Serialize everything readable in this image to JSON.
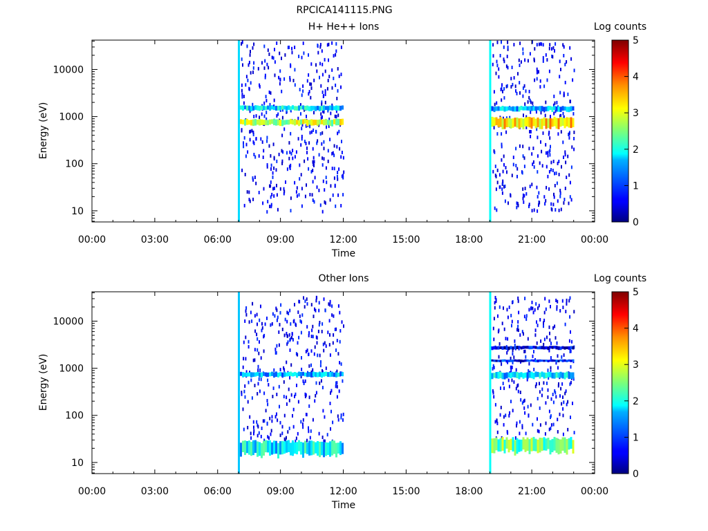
{
  "figure_title": "RPCICA141115.PNG",
  "chart_data": [
    {
      "type": "heatmap",
      "title": "H+ He++ Ions",
      "xlabel": "Time",
      "ylabel": "Energy (eV)",
      "xlim": [
        "00:00",
        "24:00"
      ],
      "x_ticks": [
        "00:00",
        "03:00",
        "06:00",
        "09:00",
        "12:00",
        "15:00",
        "18:00",
        "21:00",
        "00:00"
      ],
      "ylim": [
        5.8,
        42000
      ],
      "y_scale": "log",
      "y_ticks": [
        10,
        100,
        1000,
        10000
      ],
      "y_tick_labels": [
        "10",
        "100",
        "1000",
        "10000"
      ],
      "colorbar": {
        "label": "Log counts",
        "min": 0,
        "max": 5,
        "ticks": [
          "0",
          "1",
          "2",
          "3",
          "4",
          "5"
        ],
        "colormap": "jet"
      },
      "data_intervals": [
        {
          "start": "07:00",
          "end": "12:00"
        },
        {
          "start": "19:00",
          "end": "23:00"
        }
      ],
      "onset_spikes": [
        {
          "time": "07:00",
          "log_counts": 1.7,
          "e_min": 5.8,
          "e_max": 42000
        },
        {
          "time": "19:00",
          "log_counts": 1.9,
          "e_min": 5.8,
          "e_max": 42000
        }
      ],
      "bands": [
        {
          "start": "07:00",
          "end": "12:00",
          "e_low": 650,
          "e_high": 900,
          "log_counts": 2.8
        },
        {
          "start": "07:00",
          "end": "12:00",
          "e_low": 1350,
          "e_high": 1750,
          "log_counts": 1.7
        },
        {
          "start": "19:00",
          "end": "23:00",
          "e_low": 580,
          "e_high": 1000,
          "log_counts": 3.3
        },
        {
          "start": "19:00",
          "end": "23:00",
          "e_low": 1300,
          "e_high": 1700,
          "log_counts": 1.5
        }
      ],
      "sparse_counts_range": {
        "e_low": 10,
        "e_high": 42000,
        "log_counts": 0.3
      }
    },
    {
      "type": "heatmap",
      "title": "Other Ions",
      "xlabel": "Time",
      "ylabel": "Energy (eV)",
      "xlim": [
        "00:00",
        "24:00"
      ],
      "x_ticks": [
        "00:00",
        "03:00",
        "06:00",
        "09:00",
        "12:00",
        "15:00",
        "18:00",
        "21:00",
        "00:00"
      ],
      "ylim": [
        5.8,
        42000
      ],
      "y_scale": "log",
      "y_ticks": [
        10,
        100,
        1000,
        10000
      ],
      "y_tick_labels": [
        "10",
        "100",
        "1000",
        "10000"
      ],
      "colorbar": {
        "label": "Log counts",
        "min": 0,
        "max": 5,
        "ticks": [
          "0",
          "1",
          "2",
          "3",
          "4",
          "5"
        ],
        "colormap": "jet"
      },
      "data_intervals": [
        {
          "start": "07:00",
          "end": "12:00"
        },
        {
          "start": "19:00",
          "end": "23:00"
        }
      ],
      "onset_spikes": [
        {
          "time": "07:00",
          "log_counts": 1.6,
          "e_min": 5.8,
          "e_max": 42000
        },
        {
          "time": "19:00",
          "log_counts": 1.9,
          "e_min": 5.8,
          "e_max": 42000
        }
      ],
      "bands": [
        {
          "start": "07:00",
          "end": "12:00",
          "e_low": 650,
          "e_high": 850,
          "log_counts": 1.5
        },
        {
          "start": "07:00",
          "end": "12:00",
          "e_low": 14,
          "e_high": 30,
          "log_counts": 1.8
        },
        {
          "start": "19:00",
          "end": "23:00",
          "e_low": 600,
          "e_high": 850,
          "log_counts": 1.6
        },
        {
          "start": "19:00",
          "end": "23:00",
          "e_low": 16,
          "e_high": 35,
          "log_counts": 2.4
        },
        {
          "start": "19:00",
          "end": "23:00",
          "e_low": 1350,
          "e_high": 1550,
          "log_counts": 0.7
        },
        {
          "start": "19:00",
          "end": "23:00",
          "e_low": 2500,
          "e_high": 3000,
          "log_counts": 0.5
        }
      ],
      "sparse_counts_range": {
        "e_low": 30,
        "e_high": 35000,
        "log_counts": 0.3
      }
    }
  ]
}
